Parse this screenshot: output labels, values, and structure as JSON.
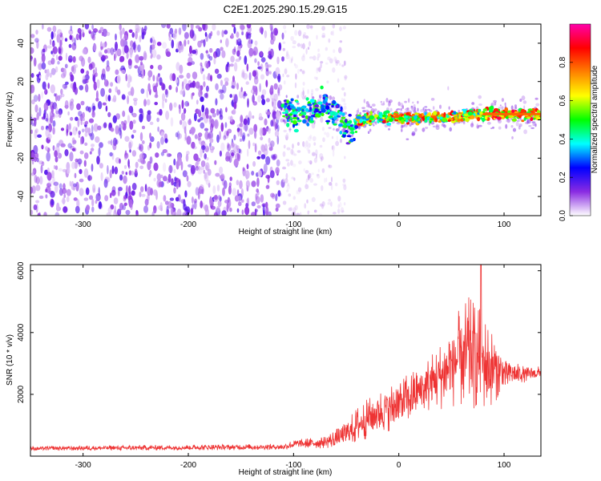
{
  "figure": {
    "title": "C2E1.2025.290.15.29.G15"
  },
  "chart_data": [
    {
      "type": "heatmap",
      "title": "C2E1.2025.290.15.29.G15",
      "xlabel": "Height of straight line (km)",
      "ylabel": "Frequency (Hz)",
      "xlim": [
        -350,
        135
      ],
      "ylim": [
        -50,
        50
      ],
      "xticks": [
        -300,
        -200,
        -100,
        0,
        100
      ],
      "xtick_labels": [
        "-300",
        "-200",
        "-100",
        "0",
        "100"
      ],
      "yticks": [
        -40,
        -20,
        0,
        20,
        40
      ],
      "ytick_labels": [
        "-40",
        "-20",
        "0",
        "20",
        "40"
      ],
      "noise_region": {
        "x": [
          -350,
          -110
        ],
        "freq": [
          -50,
          50
        ],
        "amplitude": 0.15
      },
      "sparse_region": {
        "x": [
          -110,
          -50
        ],
        "freq": [
          -50,
          50
        ],
        "amplitude": 0.05
      },
      "signal_track": [
        {
          "x": -110,
          "freq": 5
        },
        {
          "x": -95,
          "freq": 3
        },
        {
          "x": -80,
          "freq": 5
        },
        {
          "x": -70,
          "freq": 8
        },
        {
          "x": -60,
          "freq": 3
        },
        {
          "x": -50,
          "freq": -3
        },
        {
          "x": -45,
          "freq": -5
        },
        {
          "x": -38,
          "freq": 0
        },
        {
          "x": -20,
          "freq": 1
        },
        {
          "x": 0,
          "freq": 1
        },
        {
          "x": 20,
          "freq": 1
        },
        {
          "x": 40,
          "freq": 1
        },
        {
          "x": 60,
          "freq": 2
        },
        {
          "x": 80,
          "freq": 3
        },
        {
          "x": 100,
          "freq": 3
        },
        {
          "x": 135,
          "freq": 3
        }
      ],
      "colorbar": {
        "label": "Normalized spectral amplitude",
        "range": [
          0,
          1
        ],
        "ticks": [
          0.0,
          0.2,
          0.4,
          0.6,
          0.8
        ],
        "tick_labels": [
          "0.0",
          "0.2",
          "0.4",
          "0.6",
          "0.8"
        ],
        "colors": [
          "#ffffff",
          "#8a2be2",
          "#0000ff",
          "#00ffff",
          "#00ff00",
          "#ffff00",
          "#ff8000",
          "#ff0000",
          "#ff00aa"
        ]
      }
    },
    {
      "type": "line",
      "xlabel": "Height of straight line (km)",
      "ylabel": "SNR (10 * v/v)",
      "xlim": [
        -350,
        135
      ],
      "ylim": [
        0,
        6200
      ],
      "xticks": [
        -300,
        -200,
        -100,
        0,
        100
      ],
      "xtick_labels": [
        "-300",
        "-200",
        "-100",
        "0",
        "100"
      ],
      "yticks": [
        2000,
        4000,
        6000
      ],
      "ytick_labels": [
        "2000",
        "4000",
        "6000"
      ],
      "color": "#ee3333",
      "envelope": [
        {
          "x": -350,
          "mean": 250,
          "spread": 80
        },
        {
          "x": -200,
          "mean": 280,
          "spread": 90
        },
        {
          "x": -110,
          "mean": 300,
          "spread": 100
        },
        {
          "x": -100,
          "mean": 380,
          "spread": 150
        },
        {
          "x": -70,
          "mean": 450,
          "spread": 200
        },
        {
          "x": -50,
          "mean": 700,
          "spread": 400
        },
        {
          "x": -40,
          "mean": 1000,
          "spread": 600
        },
        {
          "x": -20,
          "mean": 1400,
          "spread": 700
        },
        {
          "x": 0,
          "mean": 1700,
          "spread": 800
        },
        {
          "x": 20,
          "mean": 2100,
          "spread": 800
        },
        {
          "x": 40,
          "mean": 2600,
          "spread": 1100
        },
        {
          "x": 55,
          "mean": 3100,
          "spread": 1500
        },
        {
          "x": 65,
          "mean": 3300,
          "spread": 1900
        },
        {
          "x": 75,
          "mean": 3200,
          "spread": 1700
        },
        {
          "x": 85,
          "mean": 2900,
          "spread": 1400
        },
        {
          "x": 100,
          "mean": 2700,
          "spread": 600
        },
        {
          "x": 115,
          "mean": 2650,
          "spread": 300
        },
        {
          "x": 135,
          "mean": 2700,
          "spread": 200
        }
      ],
      "peak": {
        "x": 78,
        "value": 6200
      }
    }
  ]
}
